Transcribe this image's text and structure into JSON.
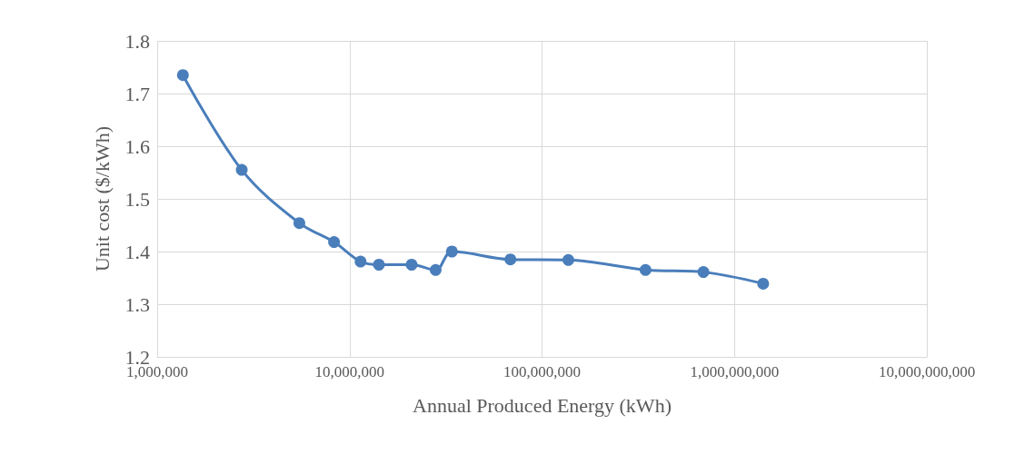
{
  "chart_data": {
    "type": "line",
    "xlabel": "Annual Produced Energy (kWh)",
    "ylabel": "Unit cost ($/kWh)",
    "x": [
      1360000,
      2750000,
      5480000,
      8300000,
      11400000,
      14200000,
      21000000,
      28000000,
      34000000,
      68500000,
      137000000,
      345000000,
      690000000,
      1410000000
    ],
    "series": [
      {
        "color": "#4a7ebb",
        "values": [
          1.735,
          1.555,
          1.454,
          1.418,
          1.381,
          1.375,
          1.375,
          1.365,
          1.4,
          1.385,
          1.384,
          1.365,
          1.361,
          1.339
        ]
      }
    ],
    "log": "x",
    "xlim": [
      1000000,
      10000000000
    ],
    "xticks": [
      {
        "value": 1000000,
        "label": "1,000,000"
      },
      {
        "value": 10000000,
        "label": "10,000,000"
      },
      {
        "value": 100000000,
        "label": "100,000,000"
      },
      {
        "value": 1000000000,
        "label": "1,000,000,000"
      },
      {
        "value": 10000000000,
        "label": "10,000,000,000"
      }
    ],
    "ylim": [
      1.2,
      1.8
    ],
    "yticks": [
      1.2,
      1.3,
      1.4,
      1.5,
      1.6,
      1.7,
      1.8
    ],
    "grid": true,
    "marker": "circle",
    "line_style": "solid"
  }
}
